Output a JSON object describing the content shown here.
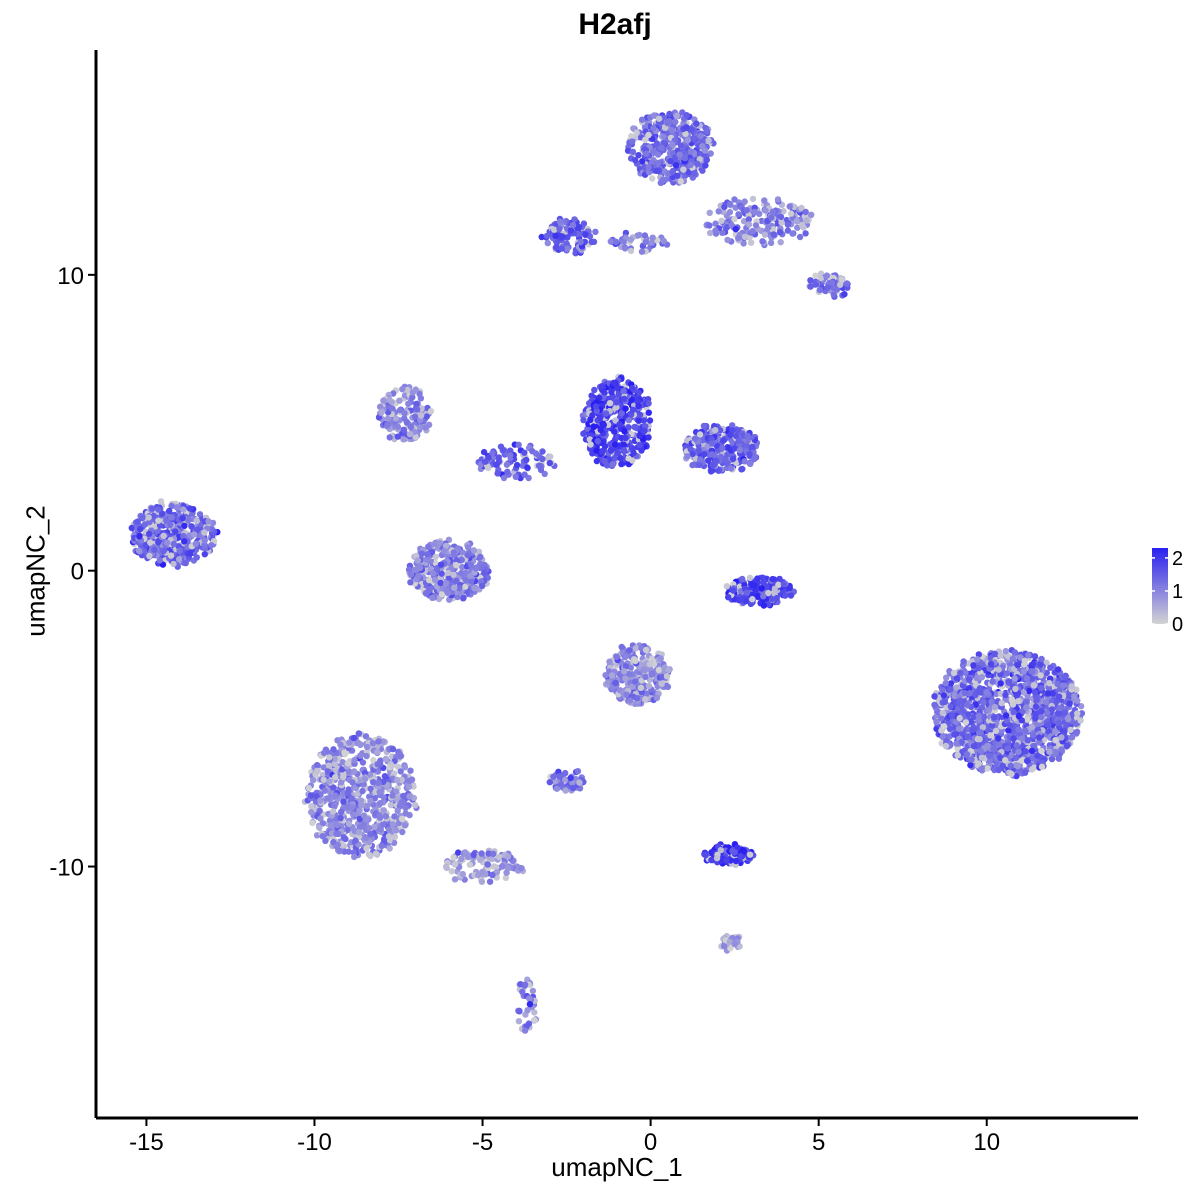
{
  "chart_data": {
    "type": "scatter",
    "title": "H2afj",
    "xlabel": "umapNC_1",
    "ylabel": "umapNC_2",
    "xlim": [
      -16.5,
      14.5
    ],
    "ylim": [
      -18.5,
      17.6
    ],
    "x_ticks": [
      -15,
      -10,
      -5,
      0,
      5,
      10
    ],
    "y_ticks": [
      -10,
      0,
      10
    ],
    "x_tick_labels": [
      "-15",
      "-10",
      "-5",
      "0",
      "5",
      "10"
    ],
    "y_tick_labels": [
      "-10",
      "0",
      "10"
    ],
    "grid": false,
    "legend": {
      "placement": "right",
      "values": [
        0,
        1,
        2
      ],
      "labels": [
        "0",
        "1",
        "2"
      ],
      "low_color": "#d3d3d3",
      "high_color": "#2a1ff0"
    },
    "color_scale": {
      "min": 0,
      "max": 2.3
    },
    "clusters": [
      {
        "x": -14.2,
        "y": 1.2,
        "rx": 1.25,
        "ry": 1.05,
        "n": 420,
        "mean_expr": 1.35
      },
      {
        "x": 0.6,
        "y": 14.3,
        "rx": 1.3,
        "ry": 1.2,
        "n": 380,
        "mean_expr": 1.3
      },
      {
        "x": 3.2,
        "y": 11.8,
        "rx": 1.6,
        "ry": 0.8,
        "n": 180,
        "mean_expr": 1.1
      },
      {
        "x": 5.3,
        "y": 9.6,
        "rx": 0.6,
        "ry": 0.4,
        "n": 60,
        "mean_expr": 1.3
      },
      {
        "x": -2.4,
        "y": 11.3,
        "rx": 0.8,
        "ry": 0.55,
        "n": 110,
        "mean_expr": 1.55
      },
      {
        "x": -0.4,
        "y": 11.1,
        "rx": 0.9,
        "ry": 0.3,
        "n": 40,
        "mean_expr": 1.2
      },
      {
        "x": -1.0,
        "y": 5.0,
        "rx": 1.0,
        "ry": 1.5,
        "n": 420,
        "mean_expr": 1.85
      },
      {
        "x": 2.1,
        "y": 4.1,
        "rx": 1.1,
        "ry": 0.8,
        "n": 260,
        "mean_expr": 1.5
      },
      {
        "x": -7.3,
        "y": 5.3,
        "rx": 0.75,
        "ry": 0.9,
        "n": 140,
        "mean_expr": 1.05
      },
      {
        "x": -4.0,
        "y": 3.7,
        "rx": 1.2,
        "ry": 0.6,
        "n": 90,
        "mean_expr": 1.4
      },
      {
        "x": -6.0,
        "y": 0.0,
        "rx": 1.2,
        "ry": 1.0,
        "n": 340,
        "mean_expr": 1.1
      },
      {
        "x": 3.2,
        "y": -0.7,
        "rx": 1.0,
        "ry": 0.45,
        "n": 170,
        "mean_expr": 1.85
      },
      {
        "x": 10.6,
        "y": -4.8,
        "rx": 2.2,
        "ry": 2.1,
        "n": 1400,
        "mean_expr": 1.35
      },
      {
        "x": -0.4,
        "y": -3.5,
        "rx": 0.95,
        "ry": 1.0,
        "n": 270,
        "mean_expr": 0.95
      },
      {
        "x": -8.6,
        "y": -7.6,
        "rx": 1.6,
        "ry": 2.1,
        "n": 640,
        "mean_expr": 1.0
      },
      {
        "x": -5.0,
        "y": -10.0,
        "rx": 1.2,
        "ry": 0.55,
        "n": 110,
        "mean_expr": 0.8
      },
      {
        "x": 2.3,
        "y": -9.6,
        "rx": 0.7,
        "ry": 0.3,
        "n": 120,
        "mean_expr": 1.9
      },
      {
        "x": -2.5,
        "y": -7.1,
        "rx": 0.5,
        "ry": 0.35,
        "n": 45,
        "mean_expr": 1.1
      },
      {
        "x": -3.7,
        "y": -14.7,
        "rx": 0.3,
        "ry": 0.9,
        "n": 40,
        "mean_expr": 1.1
      },
      {
        "x": 2.4,
        "y": -12.6,
        "rx": 0.4,
        "ry": 0.25,
        "n": 25,
        "mean_expr": 0.7
      }
    ]
  }
}
